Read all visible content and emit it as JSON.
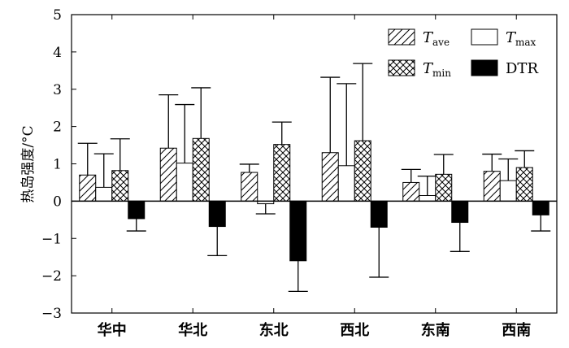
{
  "chart_data": {
    "type": "bar",
    "ylabel": "热岛强度/°C",
    "xlabel": "",
    "ylim": [
      -3,
      5
    ],
    "yticks": [
      -3,
      -2,
      -1,
      0,
      1,
      2,
      3,
      4,
      5
    ],
    "categories": [
      "华中",
      "华北",
      "东北",
      "西北",
      "东南",
      "西南"
    ],
    "legend_placement": "top-right",
    "grid": false,
    "series": [
      {
        "name_main": "T",
        "name_sub": "ave",
        "fill": "hatch-diagonal",
        "values": [
          0.7,
          1.42,
          0.77,
          1.3,
          0.5,
          0.8
        ],
        "errors": [
          0.85,
          1.43,
          0.22,
          2.02,
          0.35,
          0.46
        ]
      },
      {
        "name_main": "T",
        "name_sub": "max",
        "fill": "white",
        "values": [
          0.37,
          1.02,
          -0.07,
          0.95,
          0.15,
          0.55
        ],
        "errors": [
          0.9,
          1.57,
          0.27,
          2.2,
          0.52,
          0.58
        ]
      },
      {
        "name_main": "T",
        "name_sub": "min",
        "fill": "hatch-cross",
        "values": [
          0.82,
          1.68,
          1.52,
          1.62,
          0.72,
          0.9
        ],
        "errors": [
          0.85,
          1.36,
          0.6,
          2.07,
          0.53,
          0.45
        ]
      },
      {
        "name_main": "DTR",
        "name_sub": "",
        "fill": "black",
        "values": [
          -0.47,
          -0.68,
          -1.6,
          -0.7,
          -0.57,
          -0.37
        ],
        "errors": [
          0.33,
          0.78,
          0.82,
          1.34,
          0.78,
          0.43
        ]
      }
    ]
  }
}
